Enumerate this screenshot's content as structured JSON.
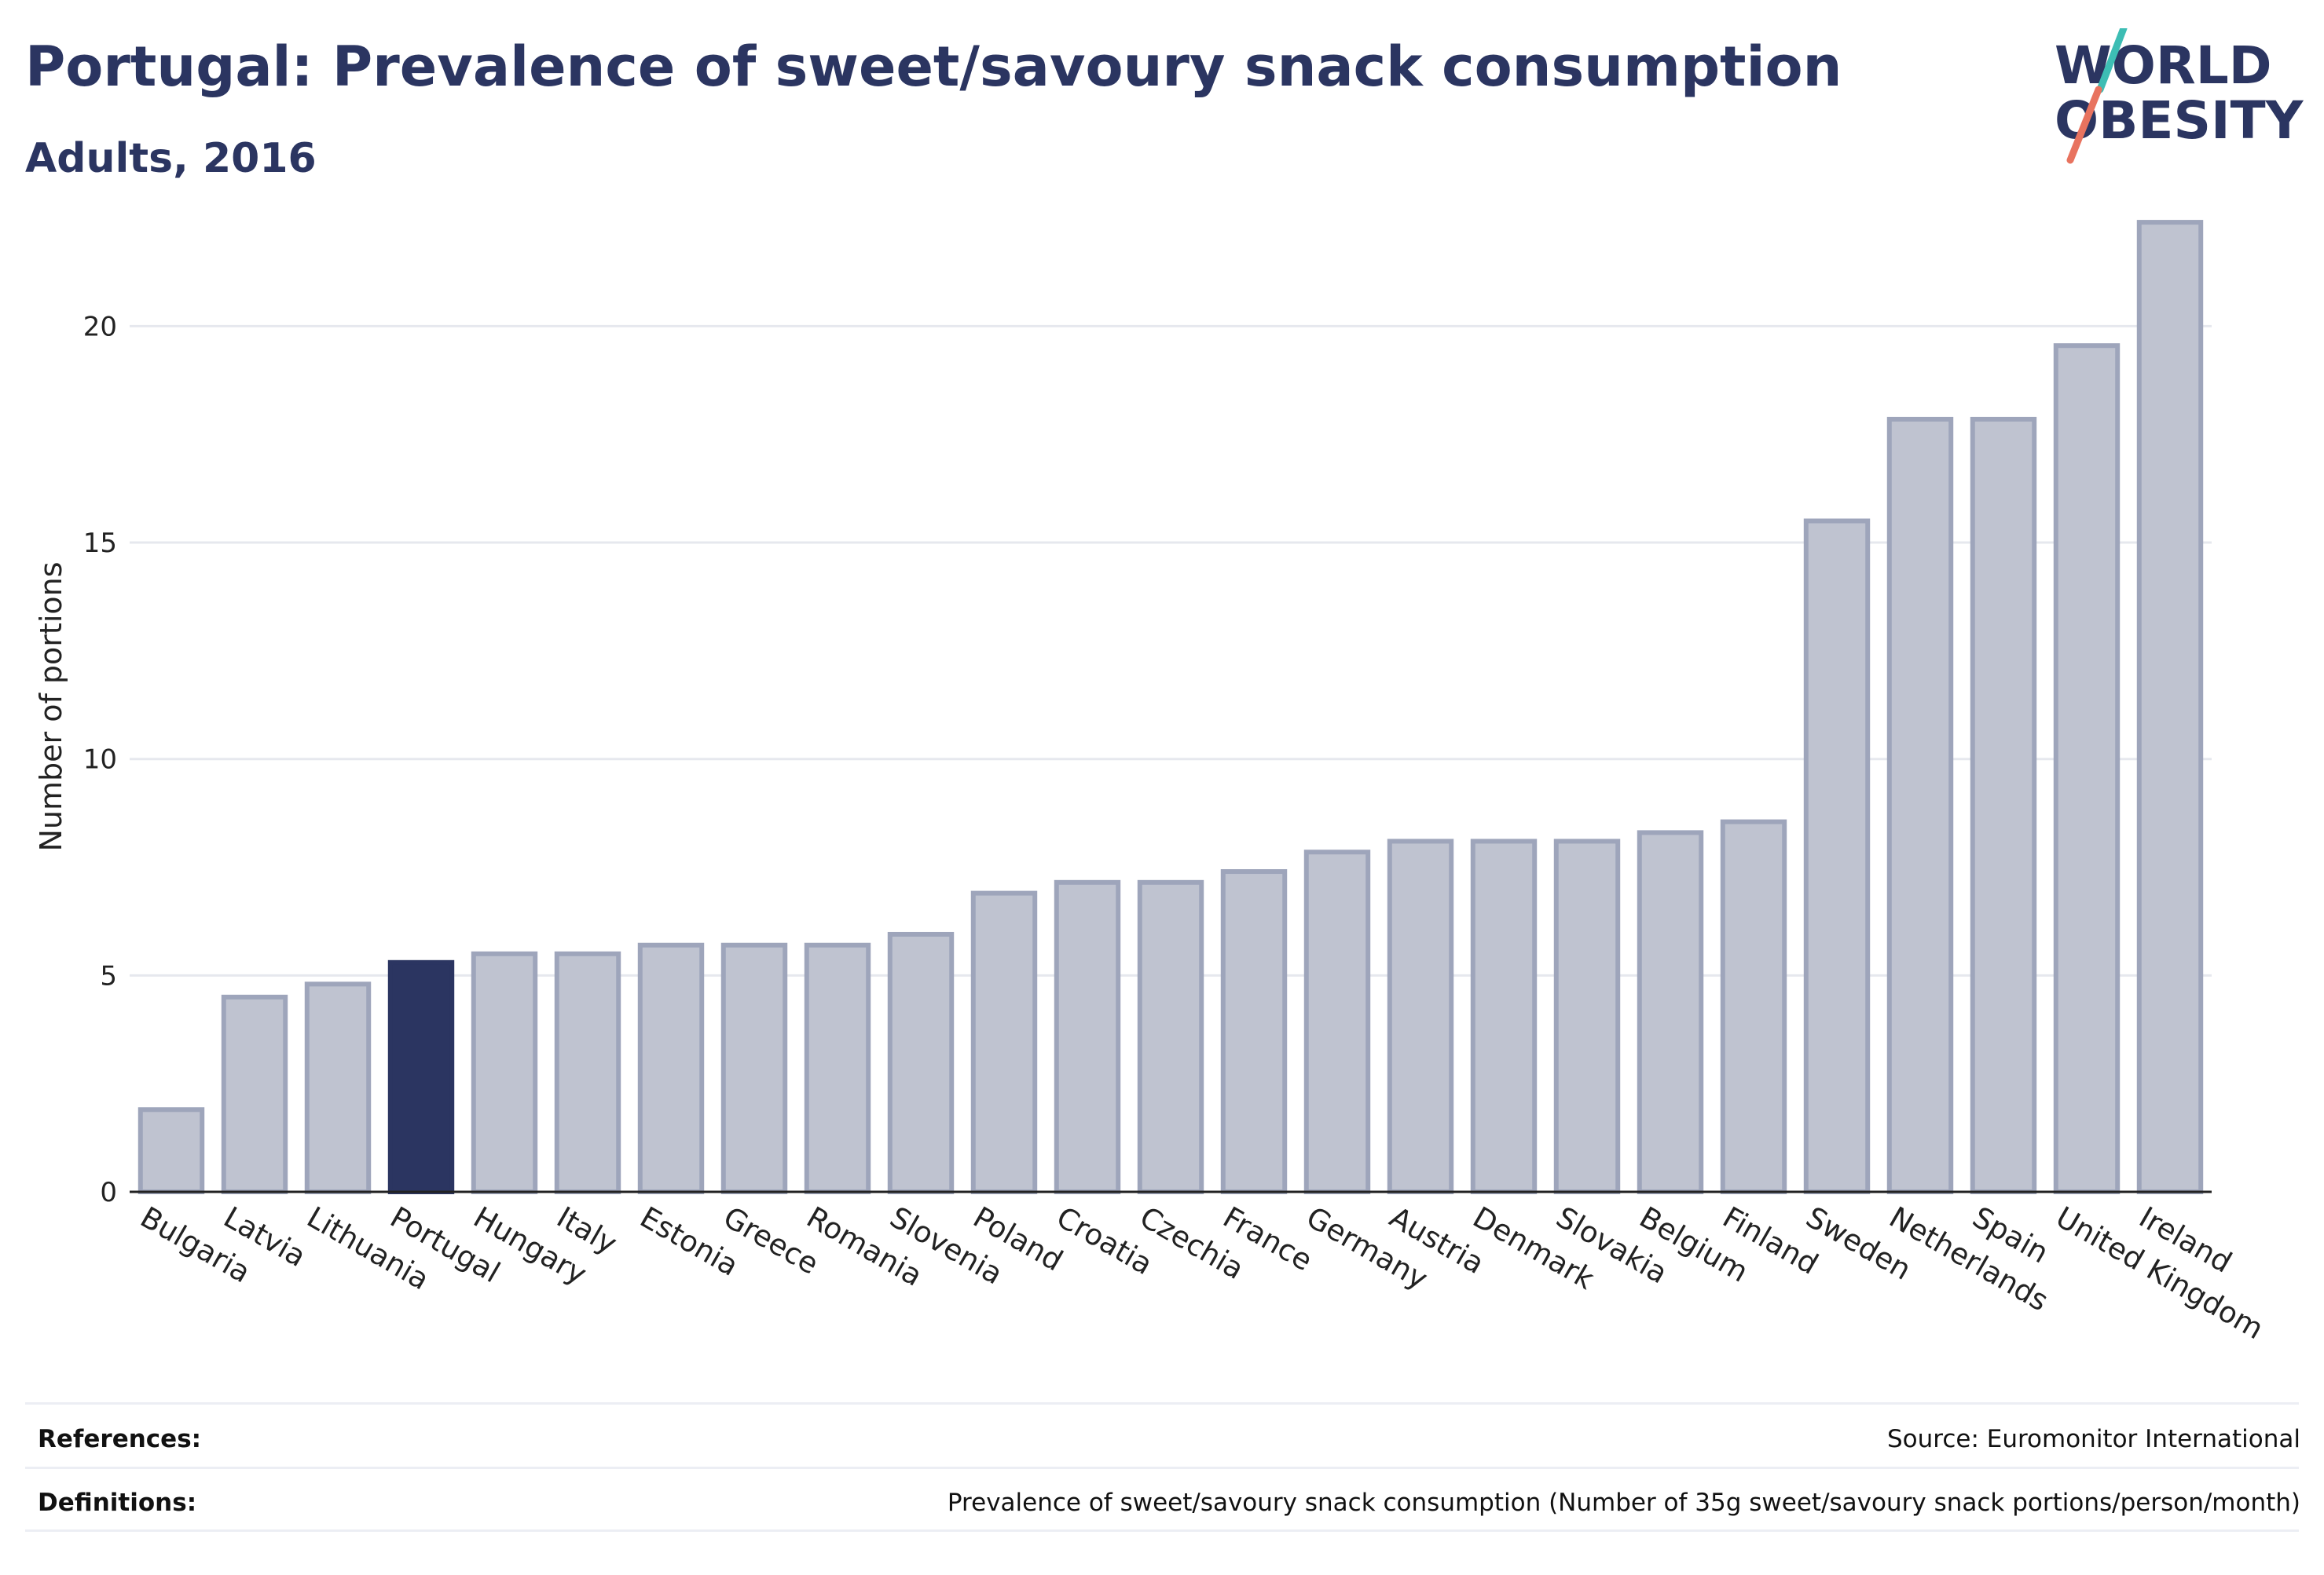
{
  "title": "Portugal: Prevalence of sweet/savoury snack consumption",
  "subtitle": "Adults, 2016",
  "logo": {
    "line1": "WORLD",
    "line2": "OBESITY",
    "accent_teal": "#3dbdb4",
    "accent_coral": "#e8735f"
  },
  "colors": {
    "bar": "#bfc3d0",
    "bar_stroke": "#9ea5bb",
    "highlight": "#2b3561",
    "grid": "#e6e8ee",
    "axis": "#222222"
  },
  "chart_data": {
    "type": "bar",
    "ylabel": "Number of portions",
    "xlabel": "",
    "ylim": [
      0,
      23
    ],
    "yticks": [
      0,
      5,
      10,
      15,
      20
    ],
    "grid": true,
    "highlight": "Portugal",
    "categories": [
      "Bulgaria",
      "Latvia",
      "Lithuania",
      "Portugal",
      "Hungary",
      "Italy",
      "Estonia",
      "Greece",
      "Romania",
      "Slovenia",
      "Poland",
      "Croatia",
      "Czechia",
      "France",
      "Germany",
      "Austria",
      "Denmark",
      "Slovakia",
      "Belgium",
      "Finland",
      "Sweden",
      "Netherlands",
      "Spain",
      "United Kingdom",
      "Ireland"
    ],
    "values": [
      1.9,
      4.5,
      4.8,
      5.3,
      5.5,
      5.5,
      5.7,
      5.7,
      5.7,
      5.95,
      6.9,
      7.15,
      7.15,
      7.4,
      7.85,
      8.1,
      8.1,
      8.1,
      8.3,
      8.55,
      15.5,
      17.85,
      17.85,
      19.55,
      22.4
    ]
  },
  "footer": {
    "references_label": "References:",
    "references_value": "Source: Euromonitor International",
    "definitions_label": "Definitions:",
    "definitions_value": "Prevalence of sweet/savoury snack consumption (Number of 35g sweet/savoury snack portions/person/month)"
  }
}
